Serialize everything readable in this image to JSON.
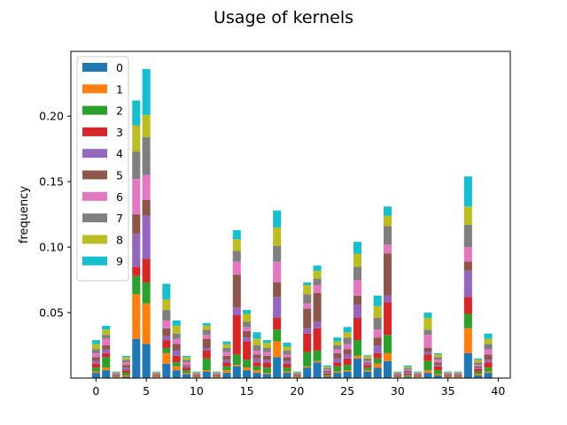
{
  "chart_data": {
    "type": "bar",
    "stacked": true,
    "title": "Usage of kernels",
    "xlabel": "",
    "ylabel": "frequency",
    "xlim": [
      -2.5,
      41.2
    ],
    "ylim": [
      0,
      0.2495
    ],
    "xticks": [
      0,
      5,
      10,
      15,
      20,
      25,
      30,
      35,
      40
    ],
    "yticks": [
      0.05,
      0.1,
      0.15,
      0.2
    ],
    "ytick_labels": [
      "0.05",
      "0.10",
      "0.15",
      "0.20"
    ],
    "legend_position": "upper-left",
    "x": [
      0,
      1,
      2,
      3,
      4,
      5,
      6,
      7,
      8,
      9,
      10,
      11,
      12,
      13,
      14,
      15,
      16,
      17,
      18,
      19,
      20,
      21,
      22,
      23,
      24,
      25,
      26,
      27,
      28,
      29,
      30,
      31,
      32,
      33,
      34,
      35,
      36,
      37,
      38,
      39
    ],
    "series": [
      {
        "name": "0",
        "color": "#1f77b4",
        "values": [
          0.004,
          0.006,
          0.0005,
          0.001,
          0.03,
          0.026,
          0.0005,
          0.011,
          0.006,
          0.003,
          0.0005,
          0.005,
          0.0005,
          0.004,
          0.009,
          0.006,
          0.004,
          0.003,
          0.016,
          0.004,
          0.0005,
          0.008,
          0.012,
          0.001,
          0.004,
          0.005,
          0.015,
          0.005,
          0.008,
          0.013,
          0.0005,
          0.001,
          0.0005,
          0.004,
          0.002,
          0.0005,
          0.0005,
          0.019,
          0.002,
          0.004
        ]
      },
      {
        "name": "1",
        "color": "#ff7f0e",
        "values": [
          0.001,
          0.002,
          0.0005,
          0.001,
          0.034,
          0.031,
          0.0005,
          0.008,
          0.003,
          0.001,
          0.0005,
          0.001,
          0.0005,
          0.002,
          0.001,
          0.002,
          0.002,
          0.001,
          0.012,
          0.001,
          0.0005,
          0.001,
          0.001,
          0.0005,
          0.001,
          0.001,
          0.002,
          0.001,
          0.003,
          0.006,
          0.0005,
          0.0005,
          0.0005,
          0.002,
          0.001,
          0.0005,
          0.0005,
          0.019,
          0.001,
          0.001
        ]
      },
      {
        "name": "2",
        "color": "#2ca02c",
        "values": [
          0.003,
          0.008,
          0.0005,
          0.002,
          0.014,
          0.016,
          0.0005,
          0.004,
          0.003,
          0.002,
          0.0005,
          0.009,
          0.0005,
          0.003,
          0.008,
          0.006,
          0.003,
          0.004,
          0.009,
          0.003,
          0.0005,
          0.011,
          0.008,
          0.001,
          0.004,
          0.004,
          0.012,
          0.002,
          0.004,
          0.014,
          0.0005,
          0.001,
          0.0005,
          0.007,
          0.003,
          0.0005,
          0.0005,
          0.011,
          0.002,
          0.003
        ]
      },
      {
        "name": "3",
        "color": "#d62728",
        "values": [
          0.003,
          0.003,
          0.0005,
          0.002,
          0.007,
          0.018,
          0.0005,
          0.006,
          0.005,
          0.002,
          0.0005,
          0.006,
          0.0005,
          0.003,
          0.03,
          0.014,
          0.003,
          0.004,
          0.009,
          0.003,
          0.0005,
          0.014,
          0.017,
          0.001,
          0.003,
          0.005,
          0.017,
          0.002,
          0.004,
          0.025,
          0.0005,
          0.001,
          0.0005,
          0.005,
          0.003,
          0.0005,
          0.0005,
          0.013,
          0.002,
          0.004
        ]
      },
      {
        "name": "4",
        "color": "#9467bd",
        "values": [
          0.002,
          0.003,
          0.0005,
          0.002,
          0.025,
          0.033,
          0.0005,
          0.003,
          0.004,
          0.001,
          0.0005,
          0.002,
          0.0005,
          0.002,
          0.006,
          0.003,
          0.003,
          0.002,
          0.016,
          0.002,
          0.0005,
          0.004,
          0.005,
          0.001,
          0.003,
          0.003,
          0.01,
          0.001,
          0.006,
          0.005,
          0.0005,
          0.001,
          0.0005,
          0.002,
          0.001,
          0.0005,
          0.0005,
          0.02,
          0.001,
          0.002
        ]
      },
      {
        "name": "5",
        "color": "#8c564b",
        "values": [
          0.003,
          0.003,
          0.0005,
          0.002,
          0.015,
          0.012,
          0.0005,
          0.006,
          0.005,
          0.001,
          0.0005,
          0.007,
          0.0005,
          0.003,
          0.025,
          0.005,
          0.003,
          0.003,
          0.011,
          0.003,
          0.0005,
          0.015,
          0.022,
          0.001,
          0.004,
          0.004,
          0.007,
          0.001,
          0.006,
          0.032,
          0.0005,
          0.001,
          0.0005,
          0.003,
          0.002,
          0.0005,
          0.0005,
          0.007,
          0.001,
          0.004
        ]
      },
      {
        "name": "6",
        "color": "#e377c2",
        "values": [
          0.003,
          0.005,
          0.0005,
          0.002,
          0.027,
          0.019,
          0.0005,
          0.006,
          0.004,
          0.002,
          0.0005,
          0.003,
          0.0005,
          0.003,
          0.01,
          0.003,
          0.003,
          0.003,
          0.016,
          0.002,
          0.0005,
          0.004,
          0.006,
          0.001,
          0.003,
          0.004,
          0.012,
          0.001,
          0.006,
          0.007,
          0.0005,
          0.001,
          0.0005,
          0.01,
          0.002,
          0.0005,
          0.0005,
          0.011,
          0.001,
          0.004
        ]
      },
      {
        "name": "7",
        "color": "#7f7f7f",
        "values": [
          0.003,
          0.003,
          0.0005,
          0.002,
          0.021,
          0.029,
          0.0005,
          0.008,
          0.004,
          0.002,
          0.0005,
          0.004,
          0.0005,
          0.003,
          0.008,
          0.004,
          0.004,
          0.003,
          0.012,
          0.003,
          0.0005,
          0.007,
          0.005,
          0.001,
          0.003,
          0.005,
          0.01,
          0.002,
          0.009,
          0.014,
          0.0005,
          0.001,
          0.0005,
          0.004,
          0.002,
          0.0005,
          0.0005,
          0.017,
          0.002,
          0.004
        ]
      },
      {
        "name": "8",
        "color": "#bcbd22",
        "values": [
          0.004,
          0.004,
          0.0005,
          0.002,
          0.02,
          0.017,
          0.0005,
          0.008,
          0.006,
          0.002,
          0.0005,
          0.003,
          0.0005,
          0.003,
          0.009,
          0.006,
          0.005,
          0.004,
          0.014,
          0.003,
          0.0005,
          0.007,
          0.006,
          0.001,
          0.003,
          0.004,
          0.01,
          0.002,
          0.009,
          0.008,
          0.0005,
          0.001,
          0.0005,
          0.009,
          0.002,
          0.0005,
          0.0005,
          0.014,
          0.002,
          0.004
        ]
      },
      {
        "name": "9",
        "color": "#17becf",
        "values": [
          0.003,
          0.003,
          0.0005,
          0.001,
          0.019,
          0.035,
          0.0005,
          0.012,
          0.004,
          0.001,
          0.0005,
          0.002,
          0.0005,
          0.002,
          0.007,
          0.003,
          0.005,
          0.002,
          0.013,
          0.003,
          0.0005,
          0.002,
          0.004,
          0.001,
          0.003,
          0.004,
          0.009,
          0.0005,
          0.008,
          0.007,
          0.0005,
          0.001,
          0.0005,
          0.004,
          0.001,
          0.0005,
          0.0005,
          0.023,
          0.001,
          0.004
        ]
      }
    ]
  }
}
